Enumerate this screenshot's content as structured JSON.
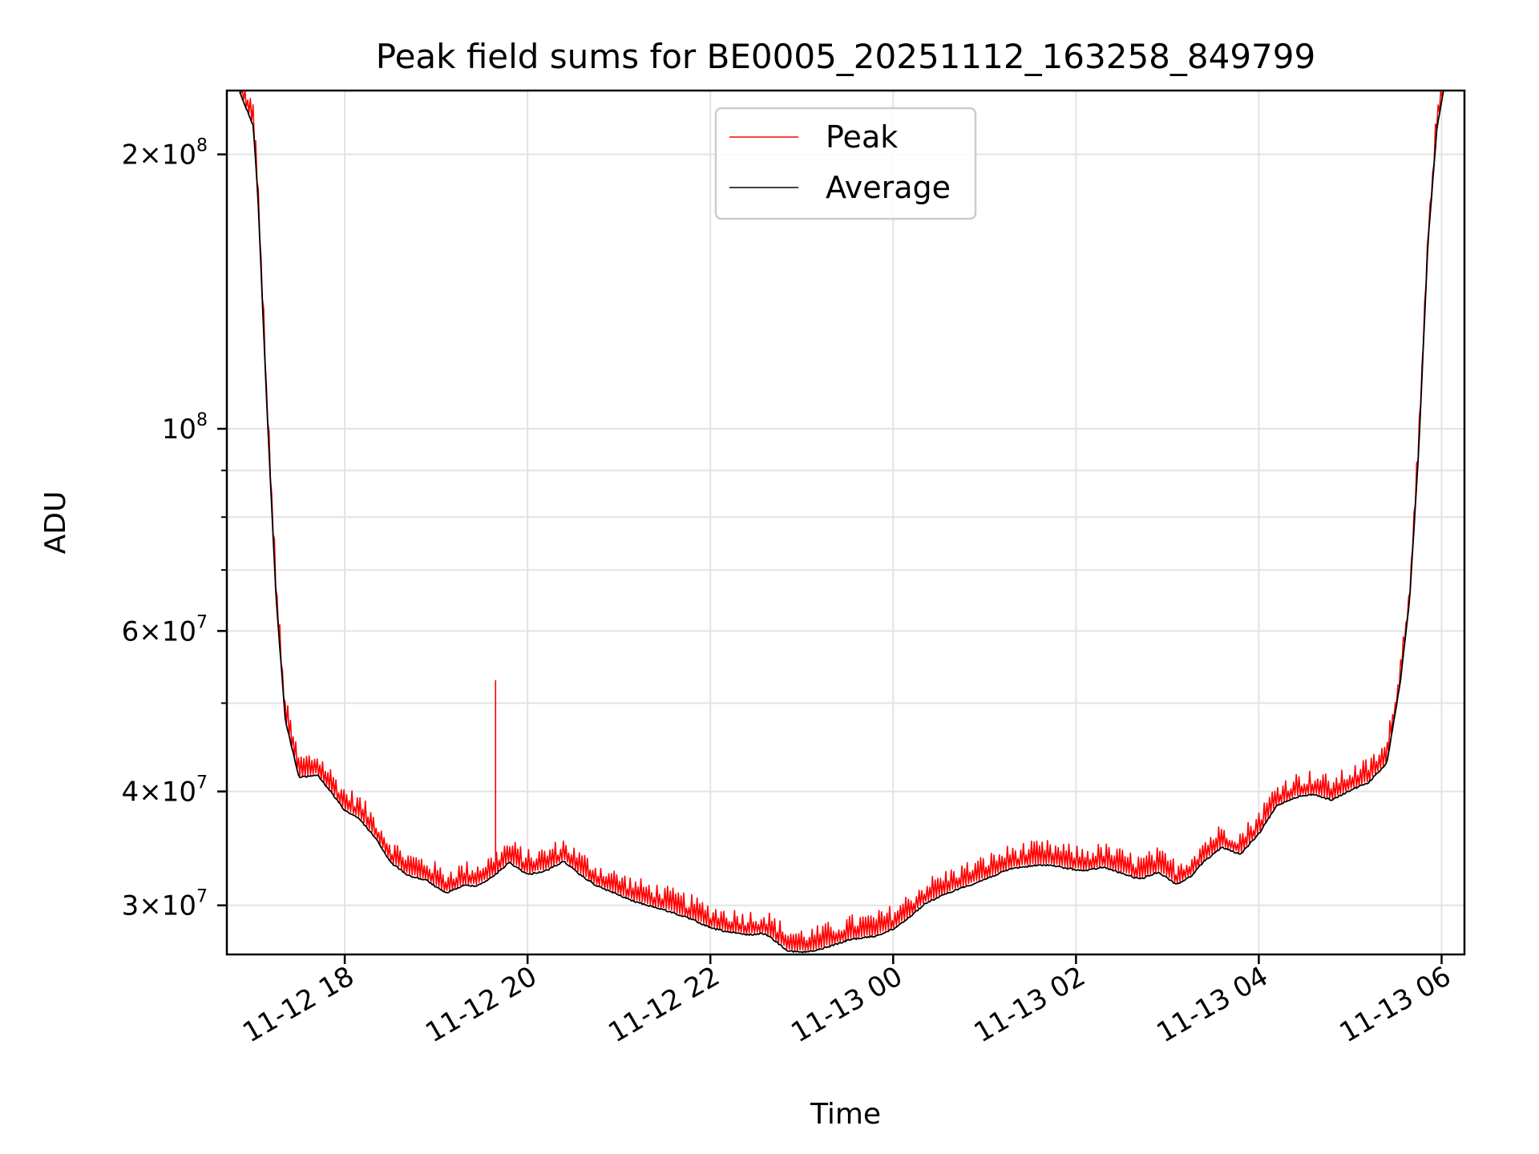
{
  "chart_data": {
    "type": "line",
    "title": "Peak field sums for BE0005_20251112_163258_849799",
    "xlabel": "Time",
    "ylabel": "ADU",
    "yscale": "log",
    "grid": true,
    "legend_position": "top-center",
    "xlim_hours": [
      16.71,
      30.25
    ],
    "ylim": [
      26500000,
      235000000
    ],
    "x_ticks": [
      {
        "hours": 18,
        "label": "11-12 18"
      },
      {
        "hours": 20,
        "label": "11-12 20"
      },
      {
        "hours": 22,
        "label": "11-12 22"
      },
      {
        "hours": 24,
        "label": "11-13 00"
      },
      {
        "hours": 26,
        "label": "11-13 02"
      },
      {
        "hours": 28,
        "label": "11-13 04"
      },
      {
        "hours": 30,
        "label": "11-13 06"
      }
    ],
    "y_ticks": [
      {
        "value": 200000000,
        "mant": "2",
        "exp": "8"
      },
      {
        "value": 100000000,
        "mant": "",
        "exp": "8"
      },
      {
        "value": 60000000,
        "mant": "6",
        "exp": "7"
      },
      {
        "value": 40000000,
        "mant": "4",
        "exp": "7"
      },
      {
        "value": 30000000,
        "mant": "3",
        "exp": "7"
      }
    ],
    "y_tick_times": "×",
    "y_tick_base": "10",
    "minor_y_ticks": [
      90000000,
      80000000,
      70000000,
      50000000
    ],
    "series": [
      {
        "name": "Average",
        "color": "#000000",
        "x_hours": [
          16.85,
          17.0,
          17.05,
          17.15,
          17.25,
          17.35,
          17.5,
          17.7,
          17.85,
          18.0,
          18.15,
          18.35,
          18.5,
          18.7,
          18.9,
          19.1,
          19.3,
          19.45,
          19.6,
          19.8,
          20.0,
          20.2,
          20.4,
          20.55,
          20.75,
          20.95,
          21.15,
          21.35,
          21.55,
          21.8,
          22.0,
          22.2,
          22.4,
          22.6,
          22.85,
          23.0,
          23.15,
          23.35,
          23.55,
          23.8,
          24.0,
          24.2,
          24.35,
          24.5,
          24.7,
          24.9,
          25.1,
          25.3,
          25.5,
          25.7,
          25.9,
          26.1,
          26.3,
          26.5,
          26.7,
          26.9,
          27.1,
          27.25,
          27.4,
          27.6,
          27.8,
          28.0,
          28.2,
          28.4,
          28.6,
          28.8,
          29.0,
          29.2,
          29.4,
          29.55,
          29.65,
          29.75,
          29.85,
          29.95,
          30.02
        ],
        "values": [
          235000000,
          215000000,
          180000000,
          105000000,
          65000000,
          48000000,
          41500000,
          41800000,
          40000000,
          38200000,
          37500000,
          35500000,
          33500000,
          32400000,
          32000000,
          31000000,
          31600000,
          31600000,
          32200000,
          33500000,
          32500000,
          32800000,
          33600000,
          32600000,
          31600000,
          31000000,
          30400000,
          30000000,
          29600000,
          29000000,
          28400000,
          28100000,
          27900000,
          28000000,
          26800000,
          26700000,
          26800000,
          27200000,
          27600000,
          27800000,
          28300000,
          29300000,
          30200000,
          30700000,
          31300000,
          31800000,
          32400000,
          33000000,
          33200000,
          33300000,
          33000000,
          32800000,
          33100000,
          32600000,
          32100000,
          32700000,
          31700000,
          32300000,
          33600000,
          34800000,
          34200000,
          36000000,
          38700000,
          39500000,
          39800000,
          39200000,
          40200000,
          41000000,
          43000000,
          53000000,
          65000000,
          95000000,
          160000000,
          215000000,
          235000000
        ]
      },
      {
        "name": "Peak",
        "color": "#ff0000",
        "offset": 1.035,
        "spike": {
          "x_hours": 19.65,
          "value": 53000000
        }
      }
    ]
  }
}
